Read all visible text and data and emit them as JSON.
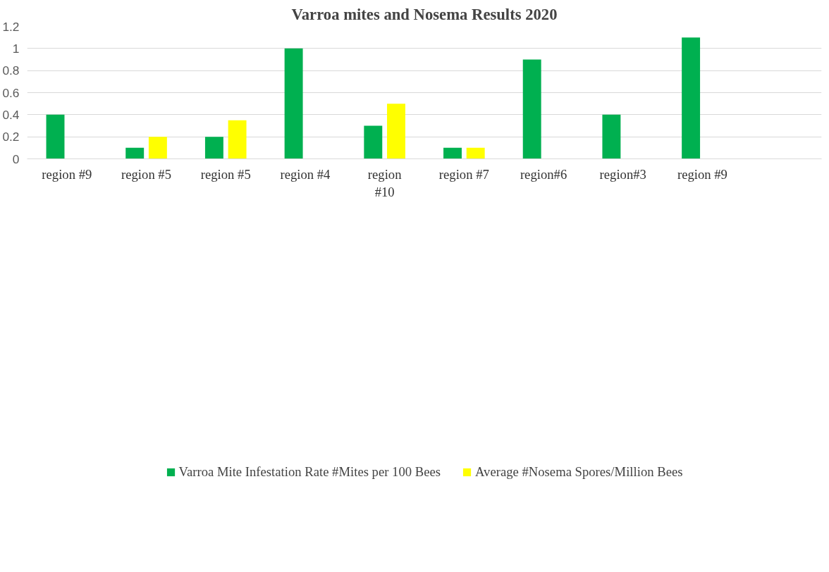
{
  "chart_data": {
    "type": "bar",
    "title": "Varroa mites and Nosema Results 2020",
    "categories": [
      "region #9",
      "region #5",
      "region #5",
      "region #4",
      "region #10",
      "region #7",
      "region#6",
      "region#3",
      "region #9",
      null
    ],
    "series": [
      {
        "name": "Varroa Mite Infestation Rate #Mites per 100 Bees",
        "color": "#00b050",
        "values": [
          0.4,
          0.1,
          0.2,
          1.0,
          0.3,
          0.1,
          0.9,
          0.4,
          1.1,
          null
        ]
      },
      {
        "name": "Average #Nosema Spores/Million Bees",
        "color": "#ffff00",
        "values": [
          null,
          0.2,
          0.35,
          null,
          0.5,
          0.1,
          null,
          null,
          null,
          null
        ]
      }
    ],
    "ylim": [
      0,
      1.2
    ],
    "yticks": [
      0,
      0.2,
      0.4,
      0.6,
      0.8,
      1,
      1.2
    ],
    "grid": "y",
    "legend": "bottom"
  }
}
